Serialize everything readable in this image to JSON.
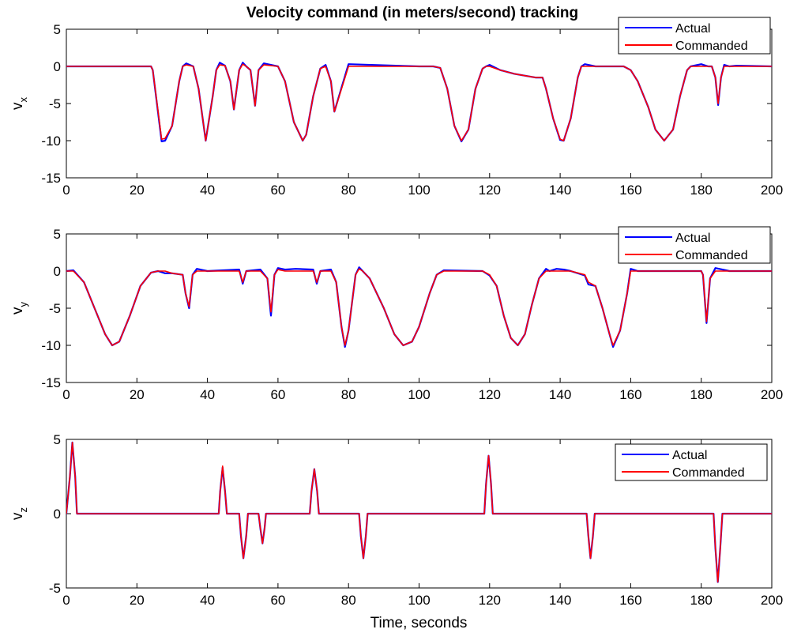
{
  "figure": {
    "title": "Velocity command (in meters/second) tracking",
    "xlabel": "Time, seconds"
  },
  "legend": {
    "actual": "Actual",
    "commanded": "Commanded"
  },
  "colors": {
    "actual": "#0000ff",
    "commanded": "#ff0000"
  },
  "chart_data": [
    {
      "type": "line",
      "title": "Velocity command (in meters/second) tracking",
      "ylabel_main": "v",
      "ylabel_sub": "x",
      "xlim": [
        0,
        200
      ],
      "ylim": [
        -15,
        5
      ],
      "xticks": [
        "0",
        "20",
        "40",
        "60",
        "80",
        "100",
        "120",
        "140",
        "160",
        "180",
        "200"
      ],
      "yticks": [
        "5",
        "0",
        "-5",
        "-10",
        "-15"
      ],
      "legend_position": "top-right",
      "series": [
        {
          "name": "Commanded",
          "x": [
            0,
            24,
            24.5,
            27,
            28,
            30,
            32,
            33,
            34,
            36,
            37.5,
            39.5,
            41.5,
            42.5,
            43.5,
            45,
            46.5,
            47.5,
            49,
            50,
            51,
            52.2,
            53.5,
            54.5,
            56,
            60,
            62,
            64.5,
            67,
            68,
            70,
            72,
            73.5,
            75,
            76,
            80,
            100,
            104,
            106,
            108,
            110,
            112,
            114,
            116,
            118,
            119,
            120,
            123,
            127,
            133,
            135,
            136,
            138,
            140,
            141,
            143,
            145,
            146,
            147,
            150,
            158,
            160,
            162,
            165,
            167,
            169.5,
            172,
            174,
            176,
            177,
            180,
            182,
            183,
            184,
            184.8,
            185.6,
            186.5,
            188,
            190,
            200
          ],
          "y": [
            0,
            0,
            -0.5,
            -9.8,
            -9.7,
            -8,
            -2,
            0,
            0.2,
            0,
            -3,
            -10,
            -4,
            -0.5,
            0.2,
            0.1,
            -2,
            -5.8,
            -0.5,
            0.3,
            0,
            -0.5,
            -5.3,
            -0.5,
            0.2,
            0,
            -2,
            -7.5,
            -10,
            -9.2,
            -4,
            -0.3,
            0,
            -2,
            -6.1,
            0,
            0,
            0,
            -0.2,
            -3,
            -8,
            -10,
            -8.5,
            -3,
            -0.3,
            0,
            0,
            -0.5,
            -1,
            -1.5,
            -1.5,
            -3,
            -7,
            -9.8,
            -10,
            -7,
            -1.5,
            0,
            0,
            0,
            0,
            -0.5,
            -2,
            -5.5,
            -8.5,
            -10,
            -8.5,
            -4,
            -0.5,
            0,
            0,
            0,
            0,
            -1.5,
            -5,
            -1.5,
            0,
            0,
            0,
            0
          ]
        },
        {
          "name": "Actual",
          "x": [
            0,
            24,
            24.5,
            27,
            28,
            30,
            32,
            33,
            34,
            36,
            37.5,
            39.5,
            41.5,
            42.5,
            43.5,
            45,
            46.5,
            47.5,
            49,
            50,
            51,
            52.2,
            53.5,
            54.5,
            56,
            60,
            62,
            64.5,
            67,
            68,
            70,
            72,
            73.5,
            75,
            76,
            80,
            100,
            104,
            106,
            108,
            110,
            112,
            114,
            116,
            118,
            119,
            120,
            123,
            127,
            133,
            135,
            136,
            138,
            140,
            141,
            143,
            145,
            146,
            147,
            150,
            158,
            160,
            162,
            165,
            167,
            169.5,
            172,
            174,
            176,
            177,
            180,
            182,
            183,
            184,
            184.8,
            185.6,
            186.5,
            188,
            190,
            200
          ],
          "y": [
            0,
            0,
            -0.5,
            -10.1,
            -10,
            -8,
            -2,
            0,
            0.4,
            0,
            -3,
            -10,
            -4,
            -0.5,
            0.5,
            0.1,
            -2,
            -5.8,
            -0.5,
            0.5,
            0,
            -0.5,
            -5.3,
            -0.5,
            0.4,
            0,
            -2,
            -7.5,
            -10,
            -9.2,
            -4,
            -0.3,
            0.2,
            -2,
            -6.1,
            0.3,
            0,
            0,
            -0.2,
            -3,
            -8,
            -10.1,
            -8.5,
            -3,
            -0.3,
            0,
            0.2,
            -0.5,
            -1,
            -1.5,
            -1.5,
            -3,
            -7,
            -9.9,
            -10,
            -7,
            -1.5,
            0,
            0.3,
            0,
            0,
            -0.5,
            -2,
            -5.5,
            -8.5,
            -10,
            -8.5,
            -4,
            -0.5,
            0,
            0.3,
            0,
            0,
            -1.5,
            -5.2,
            -1.5,
            0.2,
            0,
            0.1,
            0
          ]
        }
      ]
    },
    {
      "type": "line",
      "ylabel_main": "v",
      "ylabel_sub": "y",
      "xlim": [
        0,
        200
      ],
      "ylim": [
        -15,
        5
      ],
      "xticks": [
        "0",
        "20",
        "40",
        "60",
        "80",
        "100",
        "120",
        "140",
        "160",
        "180",
        "200"
      ],
      "yticks": [
        "5",
        "0",
        "-5",
        "-10",
        "-15"
      ],
      "legend_position": "top-right",
      "series": [
        {
          "name": "Commanded",
          "x": [
            0,
            2,
            5,
            8,
            11,
            13,
            15,
            18,
            21,
            24,
            26,
            28,
            30,
            33,
            33.8,
            34.8,
            35.8,
            37,
            40,
            49,
            50,
            51,
            55,
            57,
            58,
            59,
            60,
            62,
            65,
            70,
            71,
            72,
            75,
            76.5,
            78,
            79,
            80,
            82,
            83,
            84,
            86,
            90,
            93,
            95.5,
            98,
            100,
            103,
            105,
            107,
            118,
            120,
            122,
            124,
            126,
            128,
            130,
            132,
            134,
            136,
            137,
            139,
            141,
            143,
            147,
            148,
            150,
            152,
            154,
            155,
            157,
            159,
            160,
            162,
            180,
            180.5,
            181.5,
            182.5,
            184,
            188,
            200
          ],
          "y": [
            0,
            0,
            -1.5,
            -5,
            -8.5,
            -10,
            -9.5,
            -6,
            -2,
            -0.2,
            0,
            0,
            -0.3,
            -0.5,
            -3,
            -4.8,
            -0.5,
            0,
            0,
            0,
            -1.5,
            0,
            0,
            -1,
            -5.5,
            -0.5,
            0.2,
            0,
            0,
            0,
            -1.5,
            0,
            0,
            -1.5,
            -7.5,
            -10,
            -8,
            -0.5,
            0.3,
            0,
            -1,
            -5,
            -8.5,
            -10,
            -9.5,
            -7.5,
            -3,
            -0.5,
            0,
            0,
            -0.5,
            -2,
            -6,
            -9,
            -10,
            -8.5,
            -4.5,
            -1,
            0,
            0,
            0,
            0,
            0,
            -0.5,
            -1.5,
            -2,
            -5,
            -8.5,
            -10,
            -8,
            -3,
            0,
            0,
            0,
            -0.5,
            -6.8,
            -1,
            0,
            0,
            0
          ]
        },
        {
          "name": "Actual",
          "x": [
            0,
            2,
            5,
            8,
            11,
            13,
            15,
            18,
            21,
            24,
            26,
            28,
            30,
            33,
            33.8,
            34.8,
            35.8,
            37,
            40,
            49,
            50,
            51,
            55,
            57,
            58,
            59,
            60,
            62,
            65,
            70,
            71,
            72,
            75,
            76.5,
            78,
            79,
            80,
            82,
            83,
            84,
            86,
            90,
            93,
            95.5,
            98,
            100,
            103,
            105,
            107,
            118,
            120,
            122,
            124,
            126,
            128,
            130,
            132,
            134,
            136,
            137,
            139,
            141,
            143,
            147,
            148,
            150,
            152,
            154,
            155,
            157,
            159,
            160,
            162,
            180,
            180.5,
            181.5,
            182.5,
            184,
            188,
            200
          ],
          "y": [
            0,
            0.1,
            -1.5,
            -5,
            -8.5,
            -10,
            -9.5,
            -6,
            -2,
            -0.2,
            0,
            -0.3,
            -0.3,
            -0.5,
            -3,
            -5,
            -0.5,
            0.3,
            0,
            0.2,
            -1.7,
            0,
            0.2,
            -1,
            -6,
            -0.5,
            0.4,
            0.2,
            0.3,
            0.2,
            -1.7,
            0,
            0.2,
            -1.5,
            -7.5,
            -10.2,
            -8,
            -0.5,
            0.5,
            0,
            -1,
            -5,
            -8.5,
            -10,
            -9.5,
            -7.5,
            -3,
            -0.5,
            0.1,
            0,
            -0.6,
            -2,
            -6,
            -9,
            -10,
            -8.5,
            -4.5,
            -1,
            0.3,
            0,
            0.3,
            0.2,
            0,
            -0.6,
            -1.8,
            -2,
            -5,
            -8.5,
            -10.2,
            -8,
            -3,
            0.3,
            0,
            0,
            -0.5,
            -7,
            -1,
            0.4,
            0,
            0
          ]
        }
      ]
    },
    {
      "type": "line",
      "ylabel_main": "v",
      "ylabel_sub": "z",
      "xlim": [
        0,
        200
      ],
      "ylim": [
        -5,
        5
      ],
      "xticks": [
        "0",
        "20",
        "40",
        "60",
        "80",
        "100",
        "120",
        "140",
        "160",
        "180",
        "200"
      ],
      "yticks": [
        "5",
        "0",
        "-5"
      ],
      "legend_position": "top-right",
      "series": [
        {
          "name": "Commanded",
          "x": [
            0,
            1,
            1.7,
            2.5,
            3,
            43.2,
            43.6,
            44.3,
            45,
            45.5,
            49,
            49.5,
            50.2,
            51,
            51.5,
            54.5,
            55,
            55.6,
            56.2,
            56.6,
            69,
            69.5,
            70.3,
            71.1,
            71.6,
            83,
            83.5,
            84.2,
            84.9,
            85.4,
            118.5,
            119,
            119.7,
            120.4,
            120.9,
            147.5,
            148,
            148.6,
            149.3,
            149.8,
            183.5,
            184,
            184.7,
            185.4,
            186,
            200
          ],
          "y": [
            0,
            2.5,
            4.8,
            2.5,
            0,
            0,
            1.5,
            3.2,
            1.5,
            0,
            0,
            -1.5,
            -3,
            -1.5,
            0,
            0,
            -1,
            -2,
            -1,
            0,
            0,
            1.5,
            3,
            1.5,
            0,
            0,
            -1.5,
            -3,
            -1.5,
            0,
            0,
            2,
            3.9,
            2,
            0,
            0,
            -1.5,
            -3,
            -1.5,
            0,
            0,
            -2.3,
            -4.6,
            -2.3,
            0,
            0
          ]
        },
        {
          "name": "Actual",
          "x": [
            0,
            1,
            1.7,
            2.5,
            3,
            43.2,
            43.6,
            44.3,
            45,
            45.5,
            49,
            49.5,
            50.2,
            51,
            51.5,
            54.5,
            55,
            55.6,
            56.2,
            56.6,
            69,
            69.5,
            70.3,
            71.1,
            71.6,
            83,
            83.5,
            84.2,
            84.9,
            85.4,
            118.5,
            119,
            119.7,
            120.4,
            120.9,
            147.5,
            148,
            148.6,
            149.3,
            149.8,
            183.5,
            184,
            184.7,
            185.4,
            186,
            200
          ],
          "y": [
            0,
            2.5,
            4.8,
            2.5,
            0,
            0,
            1.5,
            3.1,
            1.5,
            0,
            0,
            -1.5,
            -3,
            -1.5,
            0,
            0,
            -1,
            -2,
            -1,
            0,
            0,
            1.5,
            3,
            1.5,
            0,
            0,
            -1.5,
            -3,
            -1.5,
            0,
            0,
            2,
            3.9,
            2,
            0,
            0,
            -1.5,
            -3,
            -1.5,
            0,
            0,
            -2.3,
            -4.6,
            -2.3,
            0,
            0
          ]
        }
      ]
    }
  ]
}
